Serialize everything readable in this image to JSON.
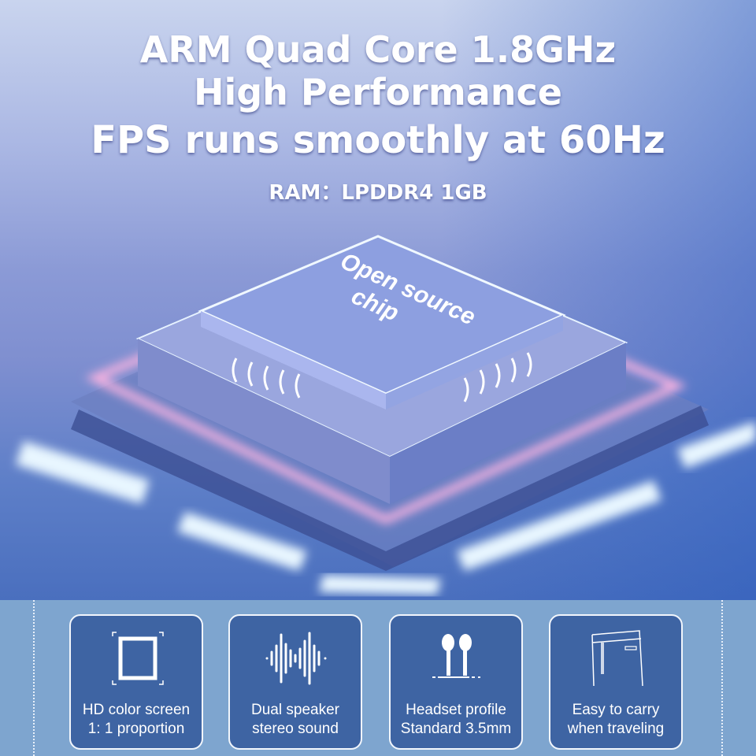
{
  "headline": {
    "line1": "ARM Quad Core 1.8GHz",
    "line2": "High Performance",
    "line3": "FPS runs smoothly at 60Hz",
    "line4": "RAM：LPDDR4 1GB"
  },
  "chip": {
    "label_line1": "Open source",
    "label_line2": "chip"
  },
  "features": [
    {
      "icon": "square-screen-icon",
      "line1": "HD color screen",
      "line2": "1: 1 proportion"
    },
    {
      "icon": "sound-wave-icon",
      "line1": "Dual speaker",
      "line2": "stereo sound"
    },
    {
      "icon": "earbuds-icon",
      "line1": "Headset profile",
      "line2": "Standard 3.5mm"
    },
    {
      "icon": "pants-pocket-icon",
      "line1": "Easy to carry",
      "line2": "when traveling"
    }
  ],
  "colors": {
    "card": "#3e64a3",
    "band": "#7ea5cf",
    "glow_pink": "#f3a8d8",
    "glow_blue": "#bfe6ff"
  }
}
